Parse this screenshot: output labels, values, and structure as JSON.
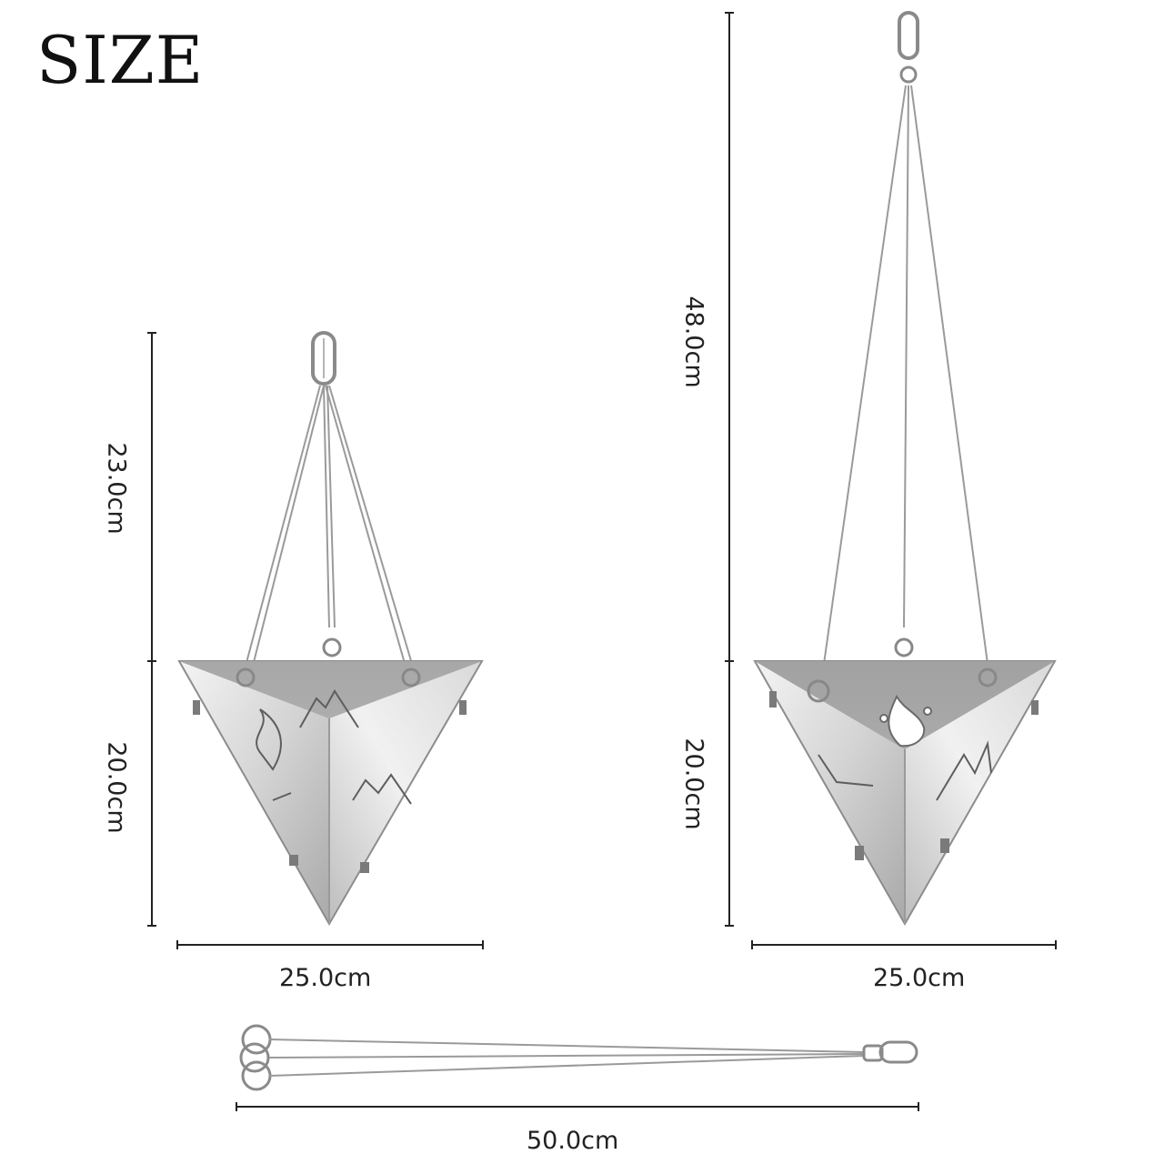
{
  "title": "SIZE",
  "dimensions": {
    "left_hang_height": "23.0cm",
    "left_body_height": "20.0cm",
    "left_width": "25.0cm",
    "right_hang_height": "48.0cm",
    "right_body_height": "20.0cm",
    "right_width": "25.0cm",
    "chain_length": "50.0cm"
  },
  "colors": {
    "steel_light": "#e9e9e9",
    "steel_mid": "#c4c4c4",
    "steel_dark": "#8e8e8e",
    "line": "#222222",
    "wire": "#9a9a9a"
  },
  "icons": [
    "carabiner-icon",
    "split-ring-icon",
    "flame-cutout-icon",
    "mountain-cutout-icon"
  ]
}
